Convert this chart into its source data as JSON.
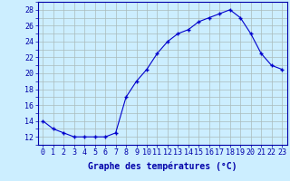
{
  "hours": [
    0,
    1,
    2,
    3,
    4,
    5,
    6,
    7,
    8,
    9,
    10,
    11,
    12,
    13,
    14,
    15,
    16,
    17,
    18,
    19,
    20,
    21,
    22,
    23
  ],
  "temps": [
    14.0,
    13.0,
    12.5,
    12.0,
    12.0,
    12.0,
    12.0,
    12.5,
    17.0,
    19.0,
    20.5,
    22.5,
    24.0,
    25.0,
    25.5,
    26.5,
    27.0,
    27.5,
    28.0,
    27.0,
    25.0,
    22.5,
    21.0,
    20.5
  ],
  "line_color": "#0000cc",
  "marker": "+",
  "marker_size": 3,
  "marker_linewidth": 1.0,
  "line_width": 0.8,
  "bg_color": "#cceeff",
  "grid_color": "#aabbbb",
  "xlabel": "Graphe des températures (°C)",
  "ylim": [
    11,
    29
  ],
  "xlim": [
    -0.5,
    23.5
  ],
  "yticks_major": [
    12,
    14,
    16,
    18,
    20,
    22,
    24,
    26,
    28
  ],
  "yticks_minor": [
    11,
    12,
    13,
    14,
    15,
    16,
    17,
    18,
    19,
    20,
    21,
    22,
    23,
    24,
    25,
    26,
    27,
    28,
    29
  ],
  "xtick_labels": [
    "0",
    "1",
    "2",
    "3",
    "4",
    "5",
    "6",
    "7",
    "8",
    "9",
    "10",
    "11",
    "12",
    "13",
    "14",
    "15",
    "16",
    "17",
    "18",
    "19",
    "20",
    "21",
    "22",
    "23"
  ],
  "xlabel_color": "#0000aa",
  "xlabel_fontsize": 7,
  "tick_fontsize": 6,
  "axes_label_color": "#0000aa",
  "spine_color": "#0000aa"
}
